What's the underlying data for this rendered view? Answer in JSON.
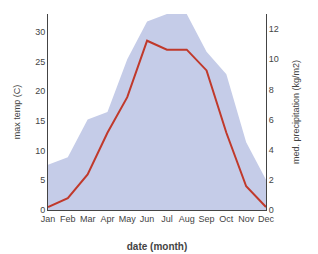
{
  "chart_data": {
    "type": "line",
    "categories": [
      "Jan",
      "Feb",
      "Mar",
      "Apr",
      "May",
      "Jun",
      "Jul",
      "Aug",
      "Sep",
      "Oct",
      "Nov",
      "Dec"
    ],
    "series": [
      {
        "type": "area",
        "axis": "y2",
        "color": "#c5cce8",
        "values": [
          3.0,
          3.5,
          6.0,
          6.5,
          10.0,
          12.5,
          13.0,
          13.0,
          10.5,
          9.0,
          4.5,
          2.0
        ]
      },
      {
        "type": "line",
        "color": "#c0392b",
        "values": [
          0.5,
          2.0,
          6.0,
          13.0,
          19.0,
          28.5,
          27.0,
          27.0,
          23.5,
          13.0,
          4.0,
          0.5
        ]
      }
    ],
    "xlabel": "date (month)",
    "ylabel": "max temp (C)",
    "y2label": "med. precipitation (kg/m2)",
    "ylim": [
      0,
      33
    ],
    "yticks": [
      0,
      5,
      10,
      15,
      20,
      25,
      30
    ],
    "y2lim": [
      0,
      13
    ],
    "y2ticks": [
      0,
      2,
      4,
      6,
      8,
      10,
      12
    ],
    "grid": false
  }
}
